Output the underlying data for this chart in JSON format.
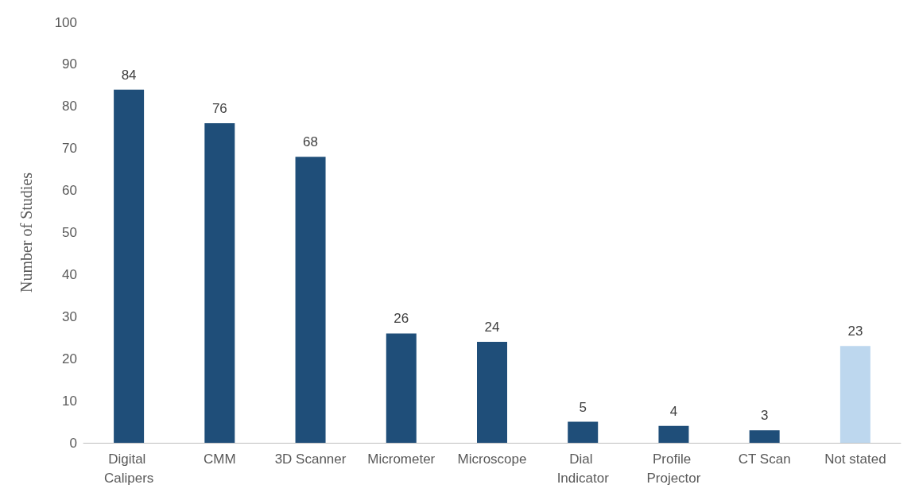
{
  "chart_data": {
    "type": "bar",
    "ylabel": "Number of Studies",
    "categories": [
      "Digital Calipers",
      "CMM",
      "3D Scanner",
      "Micrometer",
      "Microscope",
      "Dial Indicator",
      "Profile Projector",
      "CT Scan",
      "Not stated"
    ],
    "values": [
      84,
      76,
      68,
      26,
      24,
      5,
      4,
      3,
      23
    ],
    "colors": [
      "#1f4e79",
      "#1f4e79",
      "#1f4e79",
      "#1f4e79",
      "#1f4e79",
      "#1f4e79",
      "#1f4e79",
      "#1f4e79",
      "#bdd7ee"
    ],
    "ylim": [
      0,
      100
    ],
    "yticks": [
      0,
      10,
      20,
      30,
      40,
      50,
      60,
      70,
      80,
      90,
      100
    ],
    "grid": false,
    "data_labels": true
  }
}
